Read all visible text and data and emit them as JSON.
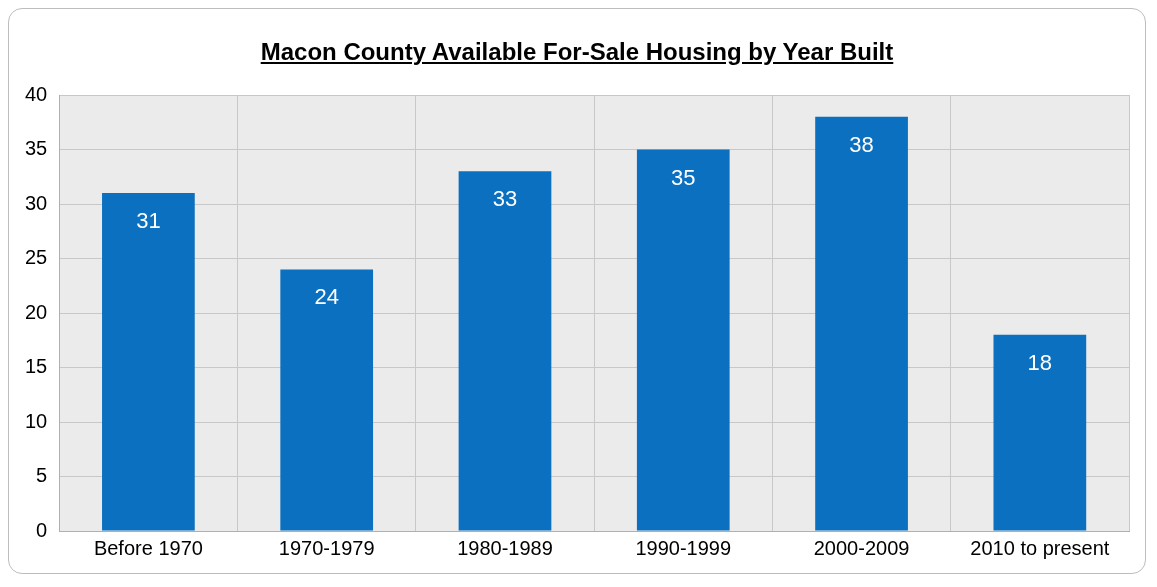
{
  "chart_data": {
    "type": "bar",
    "title": "Macon County Available For-Sale Housing by Year Built",
    "categories": [
      "Before 1970",
      "1970-1979",
      "1980-1989",
      "1990-1999",
      "2000-2009",
      "2010 to present"
    ],
    "values": [
      31,
      24,
      33,
      35,
      38,
      18
    ],
    "color": "#0b70c0",
    "ylim": [
      0,
      40
    ],
    "yticks": [
      0,
      5,
      10,
      15,
      20,
      25,
      30,
      35,
      40
    ],
    "grid": true,
    "legend": false,
    "data_labels": true
  }
}
